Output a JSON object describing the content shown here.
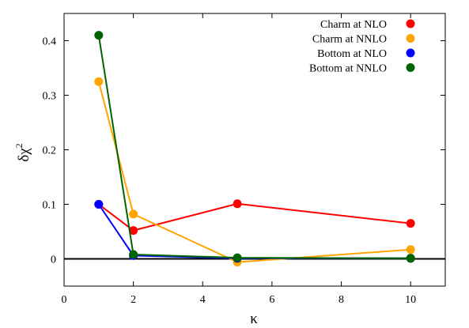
{
  "chart_data": {
    "type": "line",
    "xlabel": "κ",
    "ylabel": "δχ",
    "ylabel_superscript": "2",
    "xlim": [
      0,
      11
    ],
    "ylim": [
      -0.05,
      0.45
    ],
    "xticks": [
      0,
      2,
      4,
      6,
      8,
      10
    ],
    "yticks": [
      0,
      0.1,
      0.2,
      0.3,
      0.4
    ],
    "xtick_labels": [
      "0",
      "2",
      "4",
      "6",
      "8",
      "10"
    ],
    "ytick_labels": [
      "0",
      "0.1",
      "0.2",
      "0.3",
      "0.4"
    ],
    "grid": false,
    "zero_line": true,
    "legend_position": "top-right",
    "series": [
      {
        "name": "Charm at NLO",
        "color": "#ff0000",
        "x": [
          1,
          2,
          5,
          10
        ],
        "y": [
          0.1,
          0.052,
          0.101,
          0.065
        ]
      },
      {
        "name": "Charm at NNLO",
        "color": "#ffa500",
        "x": [
          1,
          2,
          5,
          10
        ],
        "y": [
          0.325,
          0.082,
          -0.006,
          0.017
        ]
      },
      {
        "name": "Bottom at NLO",
        "color": "#0000ff",
        "x": [
          1,
          2,
          5,
          10
        ],
        "y": [
          0.1,
          0.006,
          0.001,
          0.001
        ]
      },
      {
        "name": "Bottom at NNLO",
        "color": "#006400",
        "x": [
          1,
          2,
          5,
          10
        ],
        "y": [
          0.41,
          0.008,
          0.002,
          0.001
        ]
      }
    ]
  }
}
